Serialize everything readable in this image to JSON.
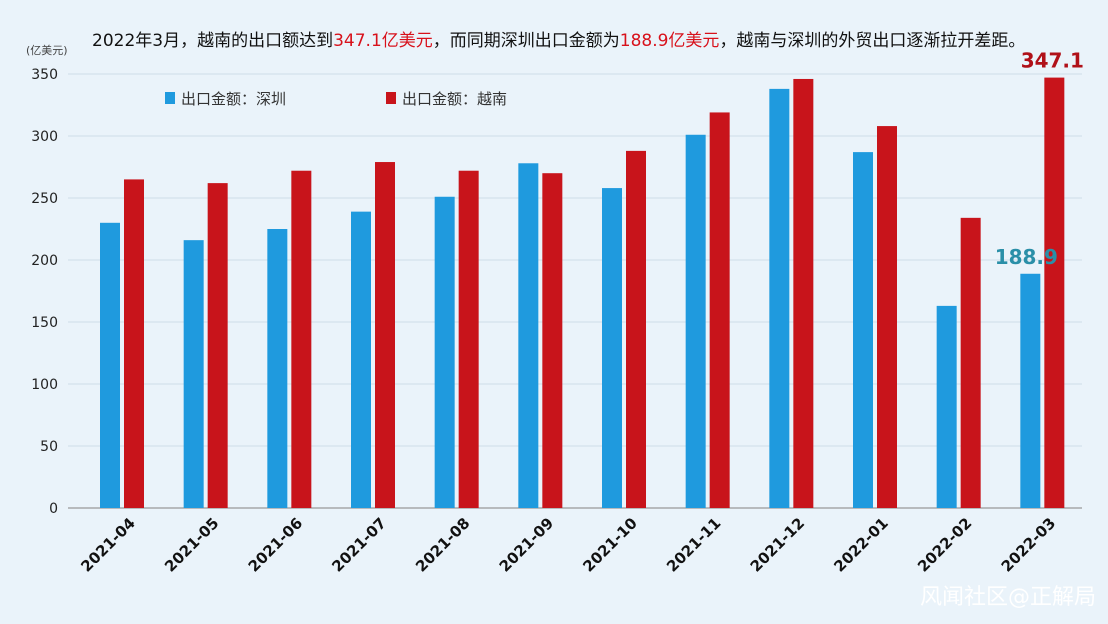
{
  "chart_data": {
    "type": "bar",
    "title_parts": [
      {
        "text": "2022年3月，越南的出口额达到",
        "highlight": false
      },
      {
        "text": "347.1亿美元",
        "highlight": true
      },
      {
        "text": "，而同期深圳出口金额为",
        "highlight": false
      },
      {
        "text": "188.9亿美元",
        "highlight": true
      },
      {
        "text": "，越南与深圳的外贸出口逐渐拉开差距。",
        "highlight": false
      }
    ],
    "ylabel": "(亿美元)",
    "xlabel": "",
    "ylim": [
      0,
      350
    ],
    "yticks": [
      0,
      50,
      100,
      150,
      200,
      250,
      300,
      350
    ],
    "grid": true,
    "legend_position": "top-left",
    "categories": [
      "2021-04",
      "2021-05",
      "2021-06",
      "2021-07",
      "2021-08",
      "2021-09",
      "2021-10",
      "2021-11",
      "2021-12",
      "2022-01",
      "2022-02",
      "2022-03"
    ],
    "series": [
      {
        "name": "出口金额：深圳",
        "color": "#1f9ade",
        "values": [
          230,
          216,
          225,
          239,
          251,
          278,
          258,
          301,
          338,
          287,
          163,
          188.9
        ]
      },
      {
        "name": "出口金额：越南",
        "color": "#c8141b",
        "values": [
          265,
          262,
          272,
          279,
          272,
          270,
          288,
          319,
          346,
          308,
          234,
          347.1
        ]
      }
    ],
    "annotations": [
      {
        "series": 0,
        "index": 11,
        "text": "188.9",
        "color": "#2a8fa8"
      },
      {
        "series": 1,
        "index": 11,
        "text": "347.1",
        "color": "#b01018"
      }
    ],
    "colors": {
      "highlight": "#d8111b",
      "title": "#111111",
      "grid": "#cfdde8",
      "axis": "#999999"
    }
  },
  "watermark": "风闻社区@正解局"
}
